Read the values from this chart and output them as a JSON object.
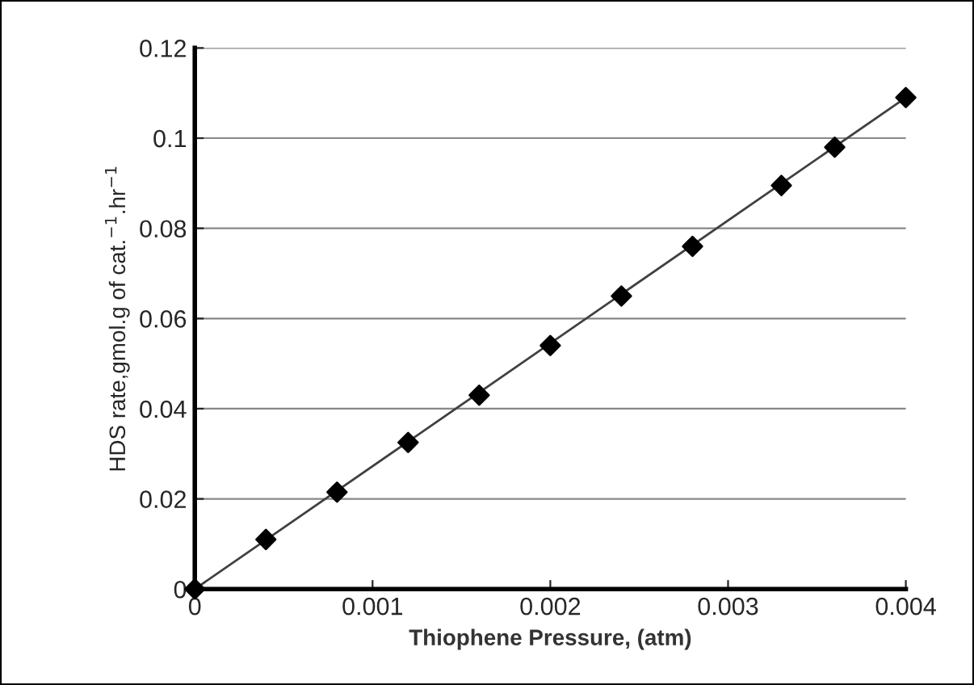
{
  "chart_data": {
    "type": "scatter",
    "xlabel": "Thiophene Pressure, (atm)",
    "ylabel": "HDS rate,gmol.g of cat.$^{−1}$.hr$^{−1}$",
    "series": [
      {
        "color": "#000000",
        "marker": "diamond",
        "x": [
          0,
          0.0004,
          0.0008,
          0.0012,
          0.0016,
          0.002,
          0.0024,
          0.0028,
          0.0033,
          0.0036,
          0.004
        ],
        "values": [
          0,
          0.011,
          0.0215,
          0.0325,
          0.043,
          0.054,
          0.065,
          0.076,
          0.0895,
          0.098,
          0.109
        ]
      },
      {
        "type": "line",
        "color": "#404040",
        "marker": "none",
        "line_style": "solid",
        "x": [
          0,
          0.004
        ],
        "values": [
          0,
          0.109
        ]
      }
    ],
    "xlim": [
      0,
      0.004
    ],
    "xticks": [
      0,
      0.001,
      0.002,
      0.003,
      0.004
    ],
    "ylim": [
      0,
      0.12
    ],
    "yticks": [
      0,
      0.02,
      0.04,
      0.06,
      0.08,
      0.1,
      0.12
    ],
    "grid": "y",
    "legend": false
  }
}
